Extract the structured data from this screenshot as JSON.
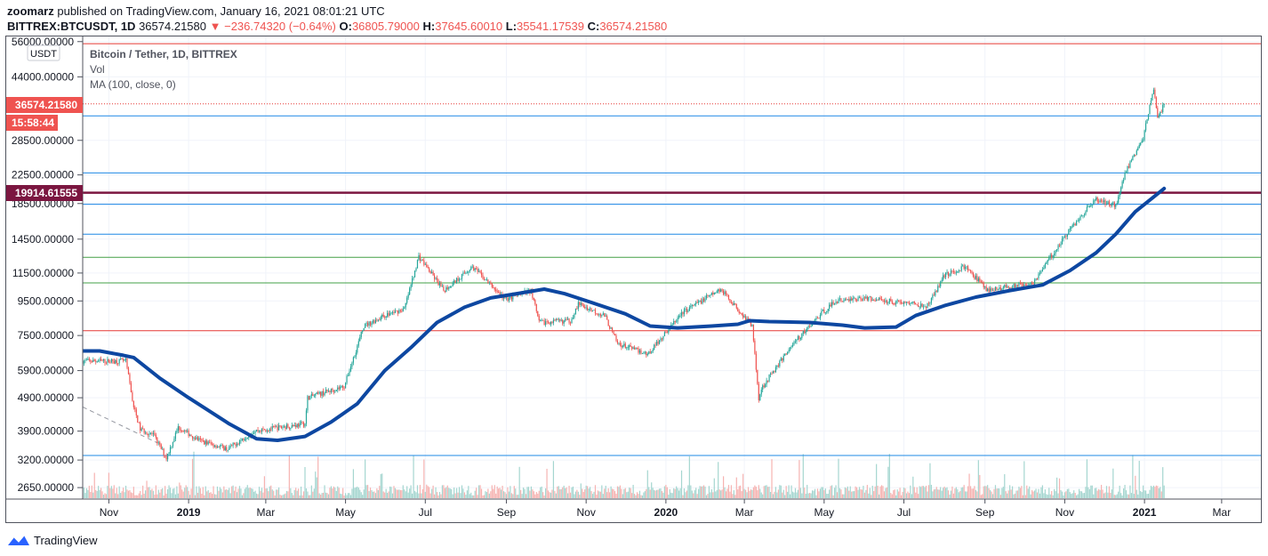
{
  "header": {
    "author": "zoomarz",
    "published_text": "published on TradingView.com, January 16, 2021 08:01:21 UTC",
    "symbol": "BITTREX:BTCUSDT, 1D",
    "last": "36574.21580",
    "change": "▼ −236.74320 (−0.64%)",
    "o_label": "O:",
    "o_value": "36805.79000",
    "h_label": "H:",
    "h_value": "37645.60010",
    "l_label": "L:",
    "l_value": "35541.17539",
    "c_label": "C:",
    "c_value": "36574.21580"
  },
  "legend": {
    "title": "Bitcoin / Tether, 1D, BITTREX",
    "vol": "Vol",
    "ma": "MA (100, close, 0)"
  },
  "price_scale": {
    "currency": "USDT",
    "last_price_label": "36574.21580",
    "countdown_label": "15:58:44",
    "line_label": "19914.61555"
  },
  "footer": {
    "brand": "TradingView"
  },
  "colors": {
    "up": "#26a69a",
    "down": "#ef5350",
    "ma": "#0d47a1",
    "hline_red": "#e53935",
    "hline_blue": "#1e88e5",
    "hline_green": "#43a047",
    "hline_maroon": "#7b1640"
  },
  "chart_data": {
    "type": "candlestick",
    "symbol": "BITTREX:BTCUSDT",
    "interval": "1D",
    "y_scale": "log",
    "ylim": [
      2450,
      58000
    ],
    "xlim": [
      "2018-10-12",
      "2021-03-31"
    ],
    "y_ticks": [
      "56000.00000",
      "44000.00000",
      "28500.00000",
      "22500.00000",
      "18500.00000",
      "14500.00000",
      "11500.00000",
      "9500.00000",
      "7500.00000",
      "5900.00000",
      "4900.00000",
      "3900.00000",
      "3200.00000",
      "2650.00000"
    ],
    "x_ticks": [
      {
        "label": "Nov",
        "date": "2018-11-01"
      },
      {
        "label": "2019",
        "date": "2019-01-01"
      },
      {
        "label": "Mar",
        "date": "2019-03-01"
      },
      {
        "label": "May",
        "date": "2019-05-01"
      },
      {
        "label": "Jul",
        "date": "2019-07-01"
      },
      {
        "label": "Sep",
        "date": "2019-09-01"
      },
      {
        "label": "Nov",
        "date": "2019-11-01"
      },
      {
        "label": "2020",
        "date": "2020-01-01"
      },
      {
        "label": "Mar",
        "date": "2020-03-01"
      },
      {
        "label": "May",
        "date": "2020-05-01"
      },
      {
        "label": "Jul",
        "date": "2020-07-01"
      },
      {
        "label": "Sep",
        "date": "2020-09-01"
      },
      {
        "label": "Nov",
        "date": "2020-11-01"
      },
      {
        "label": "2021",
        "date": "2021-01-01"
      },
      {
        "label": "Mar",
        "date": "2021-03-01"
      }
    ],
    "close_path": [
      [
        "2018-10-12",
        6300
      ],
      [
        "2018-11-14",
        6300
      ],
      [
        "2018-11-20",
        4600
      ],
      [
        "2018-11-25",
        3950
      ],
      [
        "2018-12-05",
        3800
      ],
      [
        "2018-12-15",
        3250
      ],
      [
        "2018-12-24",
        4000
      ],
      [
        "2019-01-10",
        3650
      ],
      [
        "2019-01-31",
        3450
      ],
      [
        "2019-02-20",
        3900
      ],
      [
        "2019-03-31",
        4100
      ],
      [
        "2019-04-02",
        4900
      ],
      [
        "2019-04-30",
        5300
      ],
      [
        "2019-05-15",
        8000
      ],
      [
        "2019-05-31",
        8600
      ],
      [
        "2019-06-15",
        9000
      ],
      [
        "2019-06-26",
        12900
      ],
      [
        "2019-07-15",
        10200
      ],
      [
        "2019-08-06",
        12000
      ],
      [
        "2019-08-31",
        9600
      ],
      [
        "2019-09-20",
        10200
      ],
      [
        "2019-09-26",
        8200
      ],
      [
        "2019-10-20",
        8300
      ],
      [
        "2019-10-26",
        9300
      ],
      [
        "2019-11-15",
        8600
      ],
      [
        "2019-11-25",
        7100
      ],
      [
        "2019-12-18",
        6600
      ],
      [
        "2020-01-14",
        8800
      ],
      [
        "2020-02-12",
        10300
      ],
      [
        "2020-02-28",
        8700
      ],
      [
        "2020-03-07",
        8000
      ],
      [
        "2020-03-12",
        4900
      ],
      [
        "2020-03-15",
        5300
      ],
      [
        "2020-04-06",
        7000
      ],
      [
        "2020-04-30",
        8800
      ],
      [
        "2020-05-10",
        9500
      ],
      [
        "2020-06-01",
        9700
      ],
      [
        "2020-07-20",
        9200
      ],
      [
        "2020-07-31",
        11300
      ],
      [
        "2020-08-17",
        12000
      ],
      [
        "2020-09-03",
        10200
      ],
      [
        "2020-10-08",
        10800
      ],
      [
        "2020-10-21",
        12800
      ],
      [
        "2020-11-05",
        15500
      ],
      [
        "2020-11-24",
        19000
      ],
      [
        "2020-12-10",
        18300
      ],
      [
        "2020-12-17",
        22800
      ],
      [
        "2020-12-31",
        29000
      ],
      [
        "2021-01-08",
        41000
      ],
      [
        "2021-01-11",
        33000
      ],
      [
        "2021-01-16",
        36574.2158
      ]
    ],
    "ma_100": [
      [
        "2018-10-12",
        6750
      ],
      [
        "2018-10-25",
        6750
      ],
      [
        "2018-11-12",
        6550
      ],
      [
        "2018-11-20",
        6450
      ],
      [
        "2018-12-10",
        5600
      ],
      [
        "2019-01-01",
        4900
      ],
      [
        "2019-02-01",
        4100
      ],
      [
        "2019-02-22",
        3700
      ],
      [
        "2019-03-10",
        3660
      ],
      [
        "2019-03-31",
        3760
      ],
      [
        "2019-04-20",
        4150
      ],
      [
        "2019-05-10",
        4700
      ],
      [
        "2019-05-31",
        5900
      ],
      [
        "2019-06-20",
        6900
      ],
      [
        "2019-07-10",
        8200
      ],
      [
        "2019-07-31",
        9100
      ],
      [
        "2019-08-20",
        9700
      ],
      [
        "2019-09-10",
        10000
      ],
      [
        "2019-09-30",
        10300
      ],
      [
        "2019-10-15",
        10000
      ],
      [
        "2019-11-05",
        9400
      ],
      [
        "2019-12-01",
        8700
      ],
      [
        "2019-12-20",
        8000
      ],
      [
        "2020-01-10",
        7900
      ],
      [
        "2020-02-05",
        8000
      ],
      [
        "2020-02-25",
        8100
      ],
      [
        "2020-03-05",
        8300
      ],
      [
        "2020-03-20",
        8250
      ],
      [
        "2020-04-20",
        8200
      ],
      [
        "2020-05-15",
        8050
      ],
      [
        "2020-06-01",
        7900
      ],
      [
        "2020-06-25",
        7950
      ],
      [
        "2020-07-10",
        8600
      ],
      [
        "2020-08-01",
        9200
      ],
      [
        "2020-08-25",
        9750
      ],
      [
        "2020-09-20",
        10200
      ],
      [
        "2020-10-15",
        10600
      ],
      [
        "2020-11-05",
        11700
      ],
      [
        "2020-11-25",
        13200
      ],
      [
        "2020-12-10",
        15000
      ],
      [
        "2020-12-25",
        17500
      ],
      [
        "2021-01-16",
        20500
      ]
    ],
    "horizontal_lines": [
      {
        "price": 55200,
        "color": "red"
      },
      {
        "price": 36574.2158,
        "color": "red",
        "style": "dotted"
      },
      {
        "price": 33700,
        "color": "blue"
      },
      {
        "price": 22800,
        "color": "blue"
      },
      {
        "price": 19914.61555,
        "color": "maroon"
      },
      {
        "price": 18400,
        "color": "blue"
      },
      {
        "price": 15000,
        "color": "blue"
      },
      {
        "price": 12800,
        "color": "green"
      },
      {
        "price": 10750,
        "color": "green"
      },
      {
        "price": 7750,
        "color": "red"
      },
      {
        "price": 3300,
        "color": "blue"
      }
    ]
  }
}
